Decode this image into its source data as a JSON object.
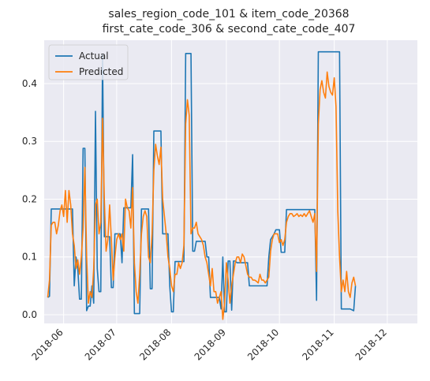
{
  "chart_data": {
    "type": "line",
    "title_lines": [
      "sales_region_code_101 & item_code_20368",
      "first_cate_code_306 & second_cate_code_407"
    ],
    "xlabel": "",
    "ylabel": "",
    "x_ticks": [
      "2018-06",
      "2018-07",
      "2018-08",
      "2018-09",
      "2018-10",
      "2018-11",
      "2018-12"
    ],
    "x_tick_dates": [
      "2018-06-01",
      "2018-07-01",
      "2018-08-01",
      "2018-09-01",
      "2018-10-01",
      "2018-11-01",
      "2018-12-01"
    ],
    "y_ticks": [
      "0.0",
      "0.1",
      "0.2",
      "0.3",
      "0.4"
    ],
    "y_tick_values": [
      0.0,
      0.1,
      0.2,
      0.3,
      0.4
    ],
    "ylim": [
      -0.015,
      0.475
    ],
    "xlim": [
      "2018-05-21",
      "2018-12-18"
    ],
    "grid": true,
    "legend_position": "top-left",
    "background": "#eaeaf2",
    "series": [
      {
        "name": "Actual",
        "color": "#1f77b4",
        "points": [
          [
            "2018-05-23",
            0.03
          ],
          [
            "2018-05-24",
            0.032
          ],
          [
            "2018-05-25",
            0.183
          ],
          [
            "2018-06-01",
            0.183
          ],
          [
            "2018-06-06",
            0.183
          ],
          [
            "2018-06-07",
            0.05
          ],
          [
            "2018-06-08",
            0.1
          ],
          [
            "2018-06-09",
            0.08
          ],
          [
            "2018-06-10",
            0.027
          ],
          [
            "2018-06-11",
            0.027
          ],
          [
            "2018-06-12",
            0.288
          ],
          [
            "2018-06-13",
            0.288
          ],
          [
            "2018-06-14",
            0.007
          ],
          [
            "2018-06-15",
            0.015
          ],
          [
            "2018-06-16",
            0.015
          ],
          [
            "2018-06-17",
            0.05
          ],
          [
            "2018-06-18",
            0.02
          ],
          [
            "2018-06-19",
            0.352
          ],
          [
            "2018-06-20",
            0.08
          ],
          [
            "2018-06-21",
            0.04
          ],
          [
            "2018-06-22",
            0.04
          ],
          [
            "2018-06-23",
            0.45
          ],
          [
            "2018-06-24",
            0.135
          ],
          [
            "2018-06-27",
            0.135
          ],
          [
            "2018-06-28",
            0.047
          ],
          [
            "2018-06-29",
            0.047
          ],
          [
            "2018-06-30",
            0.14
          ],
          [
            "2018-07-03",
            0.14
          ],
          [
            "2018-07-04",
            0.09
          ],
          [
            "2018-07-05",
            0.185
          ],
          [
            "2018-07-09",
            0.185
          ],
          [
            "2018-07-10",
            0.277
          ],
          [
            "2018-07-11",
            0.002
          ],
          [
            "2018-07-14",
            0.002
          ],
          [
            "2018-07-15",
            0.183
          ],
          [
            "2018-07-19",
            0.183
          ],
          [
            "2018-07-20",
            0.045
          ],
          [
            "2018-07-21",
            0.045
          ],
          [
            "2018-07-22",
            0.318
          ],
          [
            "2018-07-26",
            0.318
          ],
          [
            "2018-07-27",
            0.14
          ],
          [
            "2018-07-30",
            0.14
          ],
          [
            "2018-07-31",
            0.05
          ],
          [
            "2018-08-01",
            0.005
          ],
          [
            "2018-08-02",
            0.005
          ],
          [
            "2018-08-03",
            0.092
          ],
          [
            "2018-08-08",
            0.092
          ],
          [
            "2018-08-09",
            0.452
          ],
          [
            "2018-08-12",
            0.452
          ],
          [
            "2018-08-13",
            0.11
          ],
          [
            "2018-08-14",
            0.11
          ],
          [
            "2018-08-15",
            0.127
          ],
          [
            "2018-08-20",
            0.127
          ],
          [
            "2018-08-21",
            0.1
          ],
          [
            "2018-08-22",
            0.1
          ],
          [
            "2018-08-23",
            0.03
          ],
          [
            "2018-08-28",
            0.03
          ],
          [
            "2018-08-29",
            0.01
          ],
          [
            "2018-08-30",
            0.1
          ],
          [
            "2018-08-31",
            0.005
          ],
          [
            "2018-09-01",
            0.005
          ],
          [
            "2018-09-02",
            0.093
          ],
          [
            "2018-09-03",
            0.093
          ],
          [
            "2018-09-04",
            0.008
          ],
          [
            "2018-09-05",
            0.093
          ],
          [
            "2018-09-06",
            0.093
          ],
          [
            "2018-09-07",
            0.09
          ],
          [
            "2018-09-13",
            0.09
          ],
          [
            "2018-09-14",
            0.05
          ],
          [
            "2018-09-24",
            0.05
          ],
          [
            "2018-09-25",
            0.1
          ],
          [
            "2018-09-26",
            0.13
          ],
          [
            "2018-09-28",
            0.14
          ],
          [
            "2018-09-29",
            0.147
          ],
          [
            "2018-10-01",
            0.147
          ],
          [
            "2018-10-02",
            0.108
          ],
          [
            "2018-10-04",
            0.108
          ],
          [
            "2018-10-05",
            0.182
          ],
          [
            "2018-10-21",
            0.182
          ],
          [
            "2018-10-22",
            0.025
          ],
          [
            "2018-10-23",
            0.455
          ],
          [
            "2018-11-04",
            0.455
          ],
          [
            "2018-11-05",
            0.01
          ],
          [
            "2018-11-10",
            0.01
          ],
          [
            "2018-11-12",
            0.007
          ],
          [
            "2018-11-13",
            0.05
          ]
        ]
      },
      {
        "name": "Predicted",
        "color": "#ff7f0e",
        "points": [
          [
            "2018-05-23",
            0.03
          ],
          [
            "2018-05-24",
            0.06
          ],
          [
            "2018-05-25",
            0.155
          ],
          [
            "2018-05-26",
            0.16
          ],
          [
            "2018-05-27",
            0.16
          ],
          [
            "2018-05-28",
            0.14
          ],
          [
            "2018-05-29",
            0.155
          ],
          [
            "2018-05-30",
            0.18
          ],
          [
            "2018-05-31",
            0.19
          ],
          [
            "2018-06-01",
            0.17
          ],
          [
            "2018-06-02",
            0.215
          ],
          [
            "2018-06-03",
            0.16
          ],
          [
            "2018-06-04",
            0.215
          ],
          [
            "2018-06-05",
            0.19
          ],
          [
            "2018-06-06",
            0.14
          ],
          [
            "2018-06-07",
            0.12
          ],
          [
            "2018-06-08",
            0.08
          ],
          [
            "2018-06-09",
            0.095
          ],
          [
            "2018-06-10",
            0.07
          ],
          [
            "2018-06-11",
            0.1
          ],
          [
            "2018-06-12",
            0.15
          ],
          [
            "2018-06-13",
            0.255
          ],
          [
            "2018-06-14",
            0.1
          ],
          [
            "2018-06-15",
            0.02
          ],
          [
            "2018-06-16",
            0.04
          ],
          [
            "2018-06-17",
            0.03
          ],
          [
            "2018-06-18",
            0.08
          ],
          [
            "2018-06-19",
            0.19
          ],
          [
            "2018-06-20",
            0.2
          ],
          [
            "2018-06-21",
            0.14
          ],
          [
            "2018-06-22",
            0.16
          ],
          [
            "2018-06-23",
            0.34
          ],
          [
            "2018-06-24",
            0.2
          ],
          [
            "2018-06-25",
            0.11
          ],
          [
            "2018-06-26",
            0.13
          ],
          [
            "2018-06-27",
            0.19
          ],
          [
            "2018-06-28",
            0.13
          ],
          [
            "2018-06-29",
            0.06
          ],
          [
            "2018-06-30",
            0.1
          ],
          [
            "2018-07-01",
            0.13
          ],
          [
            "2018-07-02",
            0.14
          ],
          [
            "2018-07-03",
            0.13
          ],
          [
            "2018-07-04",
            0.14
          ],
          [
            "2018-07-05",
            0.11
          ],
          [
            "2018-07-06",
            0.2
          ],
          [
            "2018-07-07",
            0.185
          ],
          [
            "2018-07-08",
            0.18
          ],
          [
            "2018-07-09",
            0.15
          ],
          [
            "2018-07-10",
            0.22
          ],
          [
            "2018-07-11",
            0.09
          ],
          [
            "2018-07-12",
            0.04
          ],
          [
            "2018-07-13",
            0.02
          ],
          [
            "2018-07-14",
            0.07
          ],
          [
            "2018-07-15",
            0.14
          ],
          [
            "2018-07-16",
            0.17
          ],
          [
            "2018-07-17",
            0.18
          ],
          [
            "2018-07-18",
            0.17
          ],
          [
            "2018-07-19",
            0.1
          ],
          [
            "2018-07-20",
            0.09
          ],
          [
            "2018-07-21",
            0.14
          ],
          [
            "2018-07-22",
            0.25
          ],
          [
            "2018-07-23",
            0.295
          ],
          [
            "2018-07-24",
            0.275
          ],
          [
            "2018-07-25",
            0.26
          ],
          [
            "2018-07-26",
            0.29
          ],
          [
            "2018-07-27",
            0.2
          ],
          [
            "2018-07-28",
            0.17
          ],
          [
            "2018-07-29",
            0.14
          ],
          [
            "2018-07-30",
            0.1
          ],
          [
            "2018-07-31",
            0.08
          ],
          [
            "2018-08-01",
            0.05
          ],
          [
            "2018-08-02",
            0.04
          ],
          [
            "2018-08-03",
            0.07
          ],
          [
            "2018-08-04",
            0.07
          ],
          [
            "2018-08-05",
            0.09
          ],
          [
            "2018-08-06",
            0.08
          ],
          [
            "2018-08-07",
            0.09
          ],
          [
            "2018-08-08",
            0.12
          ],
          [
            "2018-08-09",
            0.33
          ],
          [
            "2018-08-10",
            0.372
          ],
          [
            "2018-08-11",
            0.345
          ],
          [
            "2018-08-12",
            0.14
          ],
          [
            "2018-08-13",
            0.15
          ],
          [
            "2018-08-14",
            0.15
          ],
          [
            "2018-08-15",
            0.16
          ],
          [
            "2018-08-16",
            0.14
          ],
          [
            "2018-08-17",
            0.135
          ],
          [
            "2018-08-18",
            0.13
          ],
          [
            "2018-08-19",
            0.12
          ],
          [
            "2018-08-20",
            0.1
          ],
          [
            "2018-08-21",
            0.09
          ],
          [
            "2018-08-22",
            0.07
          ],
          [
            "2018-08-23",
            0.05
          ],
          [
            "2018-08-24",
            0.08
          ],
          [
            "2018-08-25",
            0.04
          ],
          [
            "2018-08-26",
            0.04
          ],
          [
            "2018-08-27",
            0.02
          ],
          [
            "2018-08-28",
            0.03
          ],
          [
            "2018-08-29",
            0.04
          ],
          [
            "2018-08-30",
            -0.008
          ],
          [
            "2018-08-31",
            0.02
          ],
          [
            "2018-09-01",
            0.09
          ],
          [
            "2018-09-02",
            0.06
          ],
          [
            "2018-09-03",
            0.02
          ],
          [
            "2018-09-04",
            0.05
          ],
          [
            "2018-09-05",
            0.07
          ],
          [
            "2018-09-06",
            0.09
          ],
          [
            "2018-09-07",
            0.1
          ],
          [
            "2018-09-08",
            0.1
          ],
          [
            "2018-09-09",
            0.09
          ],
          [
            "2018-09-10",
            0.105
          ],
          [
            "2018-09-11",
            0.1
          ],
          [
            "2018-09-12",
            0.085
          ],
          [
            "2018-09-13",
            0.07
          ],
          [
            "2018-09-14",
            0.065
          ],
          [
            "2018-09-15",
            0.065
          ],
          [
            "2018-09-16",
            0.06
          ],
          [
            "2018-09-17",
            0.06
          ],
          [
            "2018-09-18",
            0.058
          ],
          [
            "2018-09-19",
            0.055
          ],
          [
            "2018-09-20",
            0.07
          ],
          [
            "2018-09-21",
            0.06
          ],
          [
            "2018-09-22",
            0.06
          ],
          [
            "2018-09-23",
            0.055
          ],
          [
            "2018-09-24",
            0.06
          ],
          [
            "2018-09-25",
            0.065
          ],
          [
            "2018-09-26",
            0.11
          ],
          [
            "2018-09-27",
            0.13
          ],
          [
            "2018-09-28",
            0.14
          ],
          [
            "2018-09-29",
            0.14
          ],
          [
            "2018-09-30",
            0.14
          ],
          [
            "2018-10-01",
            0.125
          ],
          [
            "2018-10-02",
            0.13
          ],
          [
            "2018-10-03",
            0.12
          ],
          [
            "2018-10-04",
            0.13
          ],
          [
            "2018-10-05",
            0.16
          ],
          [
            "2018-10-06",
            0.17
          ],
          [
            "2018-10-07",
            0.175
          ],
          [
            "2018-10-08",
            0.175
          ],
          [
            "2018-10-09",
            0.17
          ],
          [
            "2018-10-10",
            0.172
          ],
          [
            "2018-10-11",
            0.175
          ],
          [
            "2018-10-12",
            0.17
          ],
          [
            "2018-10-13",
            0.173
          ],
          [
            "2018-10-14",
            0.17
          ],
          [
            "2018-10-15",
            0.175
          ],
          [
            "2018-10-16",
            0.17
          ],
          [
            "2018-10-17",
            0.175
          ],
          [
            "2018-10-18",
            0.18
          ],
          [
            "2018-10-19",
            0.17
          ],
          [
            "2018-10-20",
            0.16
          ],
          [
            "2018-10-21",
            0.175
          ],
          [
            "2018-10-22",
            0.075
          ],
          [
            "2018-10-23",
            0.33
          ],
          [
            "2018-10-24",
            0.39
          ],
          [
            "2018-10-25",
            0.405
          ],
          [
            "2018-10-26",
            0.385
          ],
          [
            "2018-10-27",
            0.375
          ],
          [
            "2018-10-28",
            0.42
          ],
          [
            "2018-10-29",
            0.395
          ],
          [
            "2018-10-30",
            0.385
          ],
          [
            "2018-10-31",
            0.38
          ],
          [
            "2018-11-01",
            0.41
          ],
          [
            "2018-11-02",
            0.36
          ],
          [
            "2018-11-03",
            0.18
          ],
          [
            "2018-11-04",
            0.1
          ],
          [
            "2018-11-05",
            0.04
          ],
          [
            "2018-11-06",
            0.06
          ],
          [
            "2018-11-07",
            0.04
          ],
          [
            "2018-11-08",
            0.075
          ],
          [
            "2018-11-09",
            0.04
          ],
          [
            "2018-11-10",
            0.03
          ],
          [
            "2018-11-11",
            0.055
          ],
          [
            "2018-11-12",
            0.065
          ],
          [
            "2018-11-13",
            0.05
          ]
        ]
      }
    ]
  }
}
